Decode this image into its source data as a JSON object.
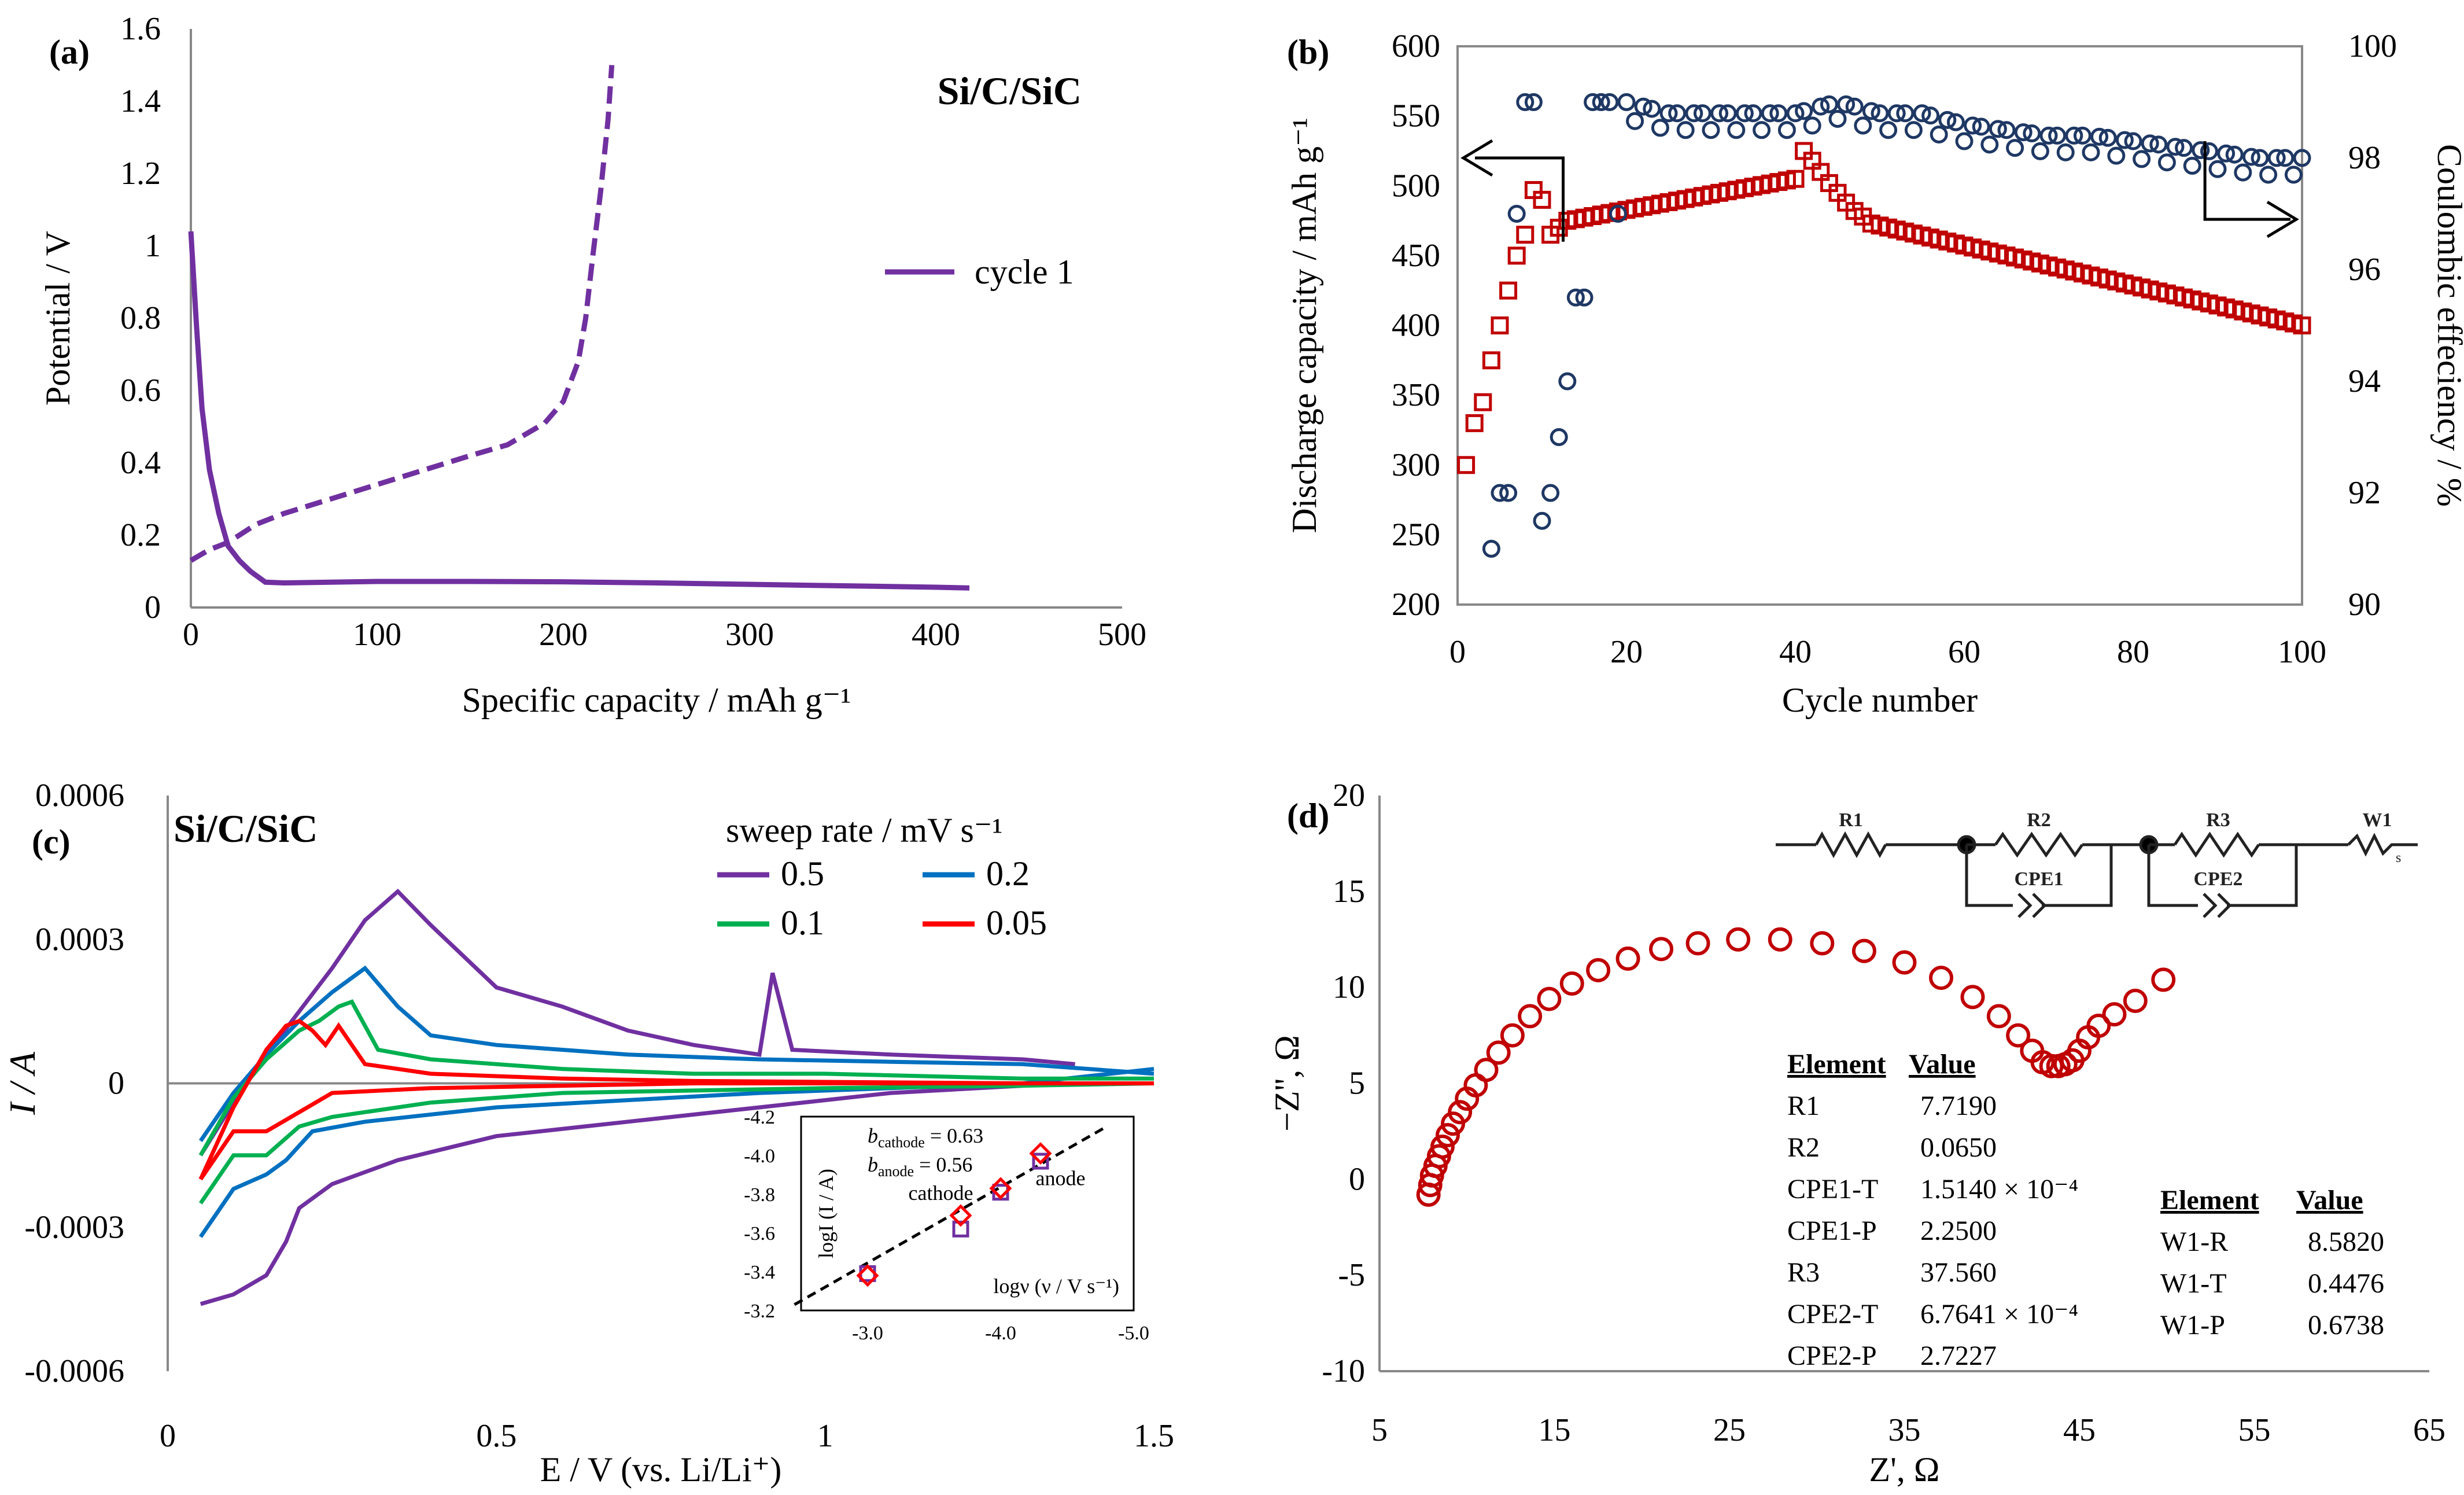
{
  "figure": {
    "panels": [
      "(a)",
      "(b)",
      "(c)",
      "(d)"
    ]
  },
  "chart_data": [
    {
      "id": "a",
      "type": "line",
      "panel_label": "(a)",
      "title": "Si/C/SiC",
      "xlabel": "Specific capacity / mAh g⁻¹",
      "ylabel": "Potential / V",
      "xlim": [
        0,
        500
      ],
      "ylim": [
        0,
        1.6
      ],
      "xticks": [
        "0",
        "100",
        "200",
        "300",
        "400",
        "500"
      ],
      "yticks": [
        "0",
        "0.2",
        "0.4",
        "0.6",
        "0.8",
        "1",
        "1.2",
        "1.4",
        "1.6"
      ],
      "legend": "cycle 1",
      "color": "#7030A0",
      "series": [
        {
          "name": "discharge",
          "style": "solid",
          "x": [
            0,
            3,
            6,
            10,
            15,
            20,
            26,
            32,
            40,
            50,
            100,
            150,
            200,
            250,
            300,
            350,
            400,
            418
          ],
          "y": [
            1.04,
            0.78,
            0.55,
            0.38,
            0.26,
            0.17,
            0.13,
            0.1,
            0.07,
            0.068,
            0.072,
            0.072,
            0.071,
            0.068,
            0.064,
            0.06,
            0.056,
            0.054
          ]
        },
        {
          "name": "charge",
          "style": "dashed",
          "x": [
            0,
            10,
            20,
            35,
            50,
            75,
            100,
            125,
            150,
            170,
            190,
            200,
            208,
            212,
            216,
            220,
            224,
            226
          ],
          "y": [
            0.13,
            0.16,
            0.18,
            0.23,
            0.26,
            0.3,
            0.34,
            0.38,
            0.42,
            0.45,
            0.51,
            0.57,
            0.68,
            0.8,
            0.98,
            1.15,
            1.35,
            1.5
          ]
        }
      ]
    },
    {
      "id": "b",
      "type": "scatter",
      "panel_label": "(b)",
      "xlabel": "Cycle number",
      "ylabel": "Discharge capacity / mAh g⁻¹",
      "y2label": "Coulombic effeciency / %",
      "xlim": [
        0,
        100
      ],
      "ylim": [
        200,
        600
      ],
      "y2lim": [
        90,
        100
      ],
      "xticks": [
        "0",
        "20",
        "40",
        "60",
        "80",
        "100"
      ],
      "yticks": [
        "200",
        "250",
        "300",
        "350",
        "400",
        "450",
        "500",
        "550",
        "600"
      ],
      "y2ticks": [
        "90",
        "92",
        "94",
        "96",
        "98",
        "100"
      ],
      "capacity_color": "#C00000",
      "ce_color": "#1F3864",
      "capacity": {
        "x": [
          1,
          2,
          3,
          4,
          5,
          6,
          7,
          8,
          9,
          10,
          11,
          12,
          13,
          40,
          41,
          42,
          43,
          44,
          45,
          46,
          47,
          48,
          49,
          100
        ],
        "y": [
          300,
          330,
          345,
          375,
          400,
          425,
          450,
          465,
          497,
          490,
          465,
          470,
          475,
          505,
          525,
          518,
          510,
          502,
          495,
          488,
          482,
          478,
          473,
          400
        ]
      },
      "coulombic_efficiency": {
        "x": [
          4,
          5,
          6,
          7,
          8,
          9,
          10,
          11,
          12,
          13,
          14,
          15,
          16,
          17,
          18,
          19,
          20,
          25,
          30,
          35,
          40,
          45,
          50,
          55,
          60,
          65,
          70,
          75,
          80,
          85,
          90,
          95,
          100
        ],
        "y": [
          91.0,
          92.0,
          92.0,
          97.0,
          99.0,
          99.0,
          91.5,
          92.0,
          93.0,
          94.0,
          95.5,
          95.5,
          99.0,
          99.0,
          99.0,
          97.0,
          99.0,
          98.8,
          98.8,
          98.8,
          98.8,
          99.0,
          98.8,
          98.8,
          98.6,
          98.5,
          98.4,
          98.4,
          98.3,
          98.2,
          98.1,
          98.0,
          98.0
        ]
      }
    },
    {
      "id": "c",
      "type": "line",
      "panel_label": "(c)",
      "title": "Si/C/SiC",
      "xlabel": "E / V (vs. Li/Li⁺)",
      "ylabel": "I / A",
      "xlim": [
        0,
        1.5
      ],
      "ylim": [
        -0.0006,
        0.0006
      ],
      "xticks": [
        "0",
        "0.5",
        "1",
        "1.5"
      ],
      "yticks": [
        "-0.0006",
        "-0.0003",
        "0",
        "0.0003",
        "0.0006"
      ],
      "legend_title": "sweep rate / mV s⁻¹",
      "series": [
        {
          "name": "0.5",
          "color": "#7030A0",
          "upper": {
            "x": [
              0.05,
              0.1,
              0.15,
              0.2,
              0.25,
              0.3,
              0.35,
              0.4,
              0.5,
              0.6,
              0.7,
              0.8,
              0.9,
              0.92,
              0.95,
              1.1,
              1.3,
              1.38
            ],
            "y": [
              -0.00015,
              -4e-05,
              6e-05,
              0.00015,
              0.00024,
              0.00034,
              0.0004,
              0.00033,
              0.0002,
              0.00016,
              0.00011,
              8e-05,
              6e-05,
              0.00023,
              7e-05,
              6e-05,
              5e-05,
              4e-05
            ]
          },
          "lower": {
            "x": [
              0.05,
              0.1,
              0.15,
              0.18,
              0.2,
              0.25,
              0.35,
              0.5,
              0.7,
              0.9,
              1.1,
              1.3
            ],
            "y": [
              -0.00046,
              -0.00044,
              -0.0004,
              -0.00033,
              -0.00026,
              -0.00021,
              -0.00016,
              -0.00011,
              -8e-05,
              -5e-05,
              -2e-05,
              -5e-06
            ]
          }
        },
        {
          "name": "0.2",
          "color": "#0070C0",
          "upper": {
            "x": [
              0.05,
              0.1,
              0.15,
              0.2,
              0.25,
              0.3,
              0.35,
              0.4,
              0.5,
              0.7,
              0.9,
              1.1,
              1.3,
              1.5
            ],
            "y": [
              -0.00012,
              -2e-05,
              6e-05,
              0.00013,
              0.00019,
              0.00024,
              0.00016,
              0.0001,
              8e-05,
              6e-05,
              5e-05,
              4.5e-05,
              4e-05,
              2e-05
            ]
          },
          "lower": {
            "x": [
              0.05,
              0.1,
              0.15,
              0.18,
              0.22,
              0.3,
              0.5,
              0.7,
              0.9,
              1.1,
              1.3,
              1.5
            ],
            "y": [
              -0.00032,
              -0.00022,
              -0.00019,
              -0.00016,
              -0.0001,
              -8e-05,
              -5e-05,
              -3.5e-05,
              -2e-05,
              -1e-05,
              0,
              3e-05
            ]
          }
        },
        {
          "name": "0.1",
          "color": "#00B050",
          "upper": {
            "x": [
              0.05,
              0.1,
              0.15,
              0.2,
              0.23,
              0.26,
              0.28,
              0.32,
              0.4,
              0.6,
              0.8,
              1.0,
              1.3,
              1.5
            ],
            "y": [
              -0.00015,
              -3e-05,
              5e-05,
              0.00011,
              0.00013,
              0.00016,
              0.00017,
              7e-05,
              5e-05,
              3e-05,
              2e-05,
              2e-05,
              1e-05,
              1e-05
            ]
          },
          "lower": {
            "x": [
              0.05,
              0.1,
              0.15,
              0.2,
              0.25,
              0.4,
              0.6,
              0.8,
              1.0,
              1.3,
              1.5
            ],
            "y": [
              -0.00025,
              -0.00015,
              -0.00015,
              -9e-05,
              -7e-05,
              -4e-05,
              -2e-05,
              -1.5e-05,
              -1e-05,
              -5e-06,
              0
            ]
          }
        },
        {
          "name": "0.05",
          "color": "#FF0000",
          "upper": {
            "x": [
              0.05,
              0.1,
              0.15,
              0.18,
              0.2,
              0.22,
              0.24,
              0.26,
              0.3,
              0.4,
              0.6,
              0.8,
              1.0,
              1.3,
              1.5
            ],
            "y": [
              -0.0002,
              -5e-05,
              7e-05,
              0.00012,
              0.00013,
              0.00011,
              8e-05,
              0.00012,
              4e-05,
              2e-05,
              1e-05,
              5e-06,
              3e-06,
              0,
              0
            ]
          },
          "lower": {
            "x": [
              0.05,
              0.1,
              0.15,
              0.2,
              0.25,
              0.4,
              0.6,
              0.8,
              1.0,
              1.3,
              1.5
            ],
            "y": [
              -0.0002,
              -0.0001,
              -0.0001,
              -6e-05,
              -2e-05,
              -1e-05,
              -5e-06,
              0,
              0,
              0,
              0
            ]
          }
        }
      ],
      "inset": {
        "xlabel": "logν (ν / V s⁻¹)",
        "ylabel": "logI (I / A)",
        "xlim": [
          -2.5,
          -5.0
        ],
        "ylim": [
          -3.2,
          -4.2
        ],
        "xticks": [
          "-3.0",
          "-4.0",
          "-5.0"
        ],
        "yticks": [
          "-3.2",
          "-3.4",
          "-3.6",
          "-3.8",
          "-4.0",
          "-4.2"
        ],
        "b_cathode_label": "b",
        "b_cathode_sub": "cathode",
        "b_cathode_value": " = 0.63",
        "b_anode_label": "b",
        "b_anode_sub": "anode",
        "b_anode_value": " = 0.56",
        "cathode_text": "cathode",
        "anode_text": "anode",
        "cathode_points": {
          "x": [
            -3.0,
            -3.7,
            -4.0,
            -4.3
          ],
          "y": [
            -3.38,
            -3.69,
            -3.83,
            -4.01
          ]
        },
        "anode_points": {
          "x": [
            -3.0,
            -3.7,
            -4.0,
            -4.3
          ],
          "y": [
            -3.39,
            -3.62,
            -3.81,
            -3.97
          ]
        }
      }
    },
    {
      "id": "d",
      "type": "scatter",
      "panel_label": "(d)",
      "xlabel": "Z', Ω",
      "ylabel": "−Z'', Ω",
      "xlim": [
        5,
        65
      ],
      "ylim": [
        -10,
        20
      ],
      "xticks": [
        "5",
        "15",
        "25",
        "35",
        "45",
        "55",
        "65"
      ],
      "yticks": [
        "-10",
        "-5",
        "0",
        "5",
        "10",
        "15",
        "20"
      ],
      "color": "#C00000",
      "x": [
        7.8,
        7.9,
        8.0,
        8.2,
        8.4,
        8.6,
        8.9,
        9.2,
        9.6,
        10.0,
        10.5,
        11.1,
        11.8,
        12.6,
        13.6,
        14.7,
        16.0,
        17.5,
        19.2,
        21.1,
        23.2,
        25.5,
        27.9,
        30.3,
        32.7,
        35.0,
        37.1,
        38.9,
        40.4,
        41.5,
        42.3,
        42.9,
        43.4,
        43.8,
        44.2,
        44.6,
        45.0,
        45.5,
        46.1,
        47.0,
        48.2,
        49.8
      ],
      "y": [
        -0.8,
        -0.3,
        0.2,
        0.7,
        1.2,
        1.7,
        2.3,
        2.9,
        3.5,
        4.2,
        4.9,
        5.7,
        6.6,
        7.5,
        8.5,
        9.4,
        10.2,
        10.9,
        11.5,
        12.0,
        12.3,
        12.5,
        12.5,
        12.3,
        11.9,
        11.3,
        10.5,
        9.5,
        8.5,
        7.5,
        6.7,
        6.1,
        5.9,
        5.9,
        6.0,
        6.2,
        6.7,
        7.4,
        8.0,
        8.6,
        9.3,
        10.4
      ],
      "circuit": {
        "labels": [
          "R1",
          "R2",
          "CPE1",
          "R3",
          "CPE2",
          "W1",
          "s"
        ]
      },
      "table1": {
        "headers": [
          "Element",
          "Value"
        ],
        "rows": [
          [
            "R1",
            "7.7190"
          ],
          [
            "R2",
            "0.0650"
          ],
          [
            "CPE1-T",
            "1.5140 × 10⁻⁴"
          ],
          [
            "CPE1-P",
            "2.2500"
          ],
          [
            "R3",
            "37.560"
          ],
          [
            "CPE2-T",
            "6.7641 × 10⁻⁴"
          ],
          [
            "CPE2-P",
            "2.7227"
          ]
        ]
      },
      "table2": {
        "headers": [
          "Element",
          "Value"
        ],
        "rows": [
          [
            "W1-R",
            "8.5820"
          ],
          [
            "W1-T",
            "0.4476"
          ],
          [
            "W1-P",
            "0.6738"
          ]
        ]
      }
    }
  ]
}
